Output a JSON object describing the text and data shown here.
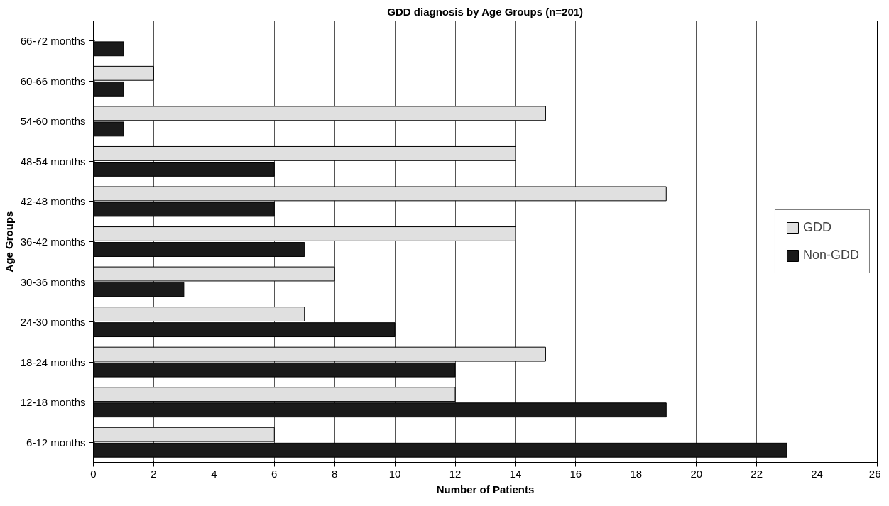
{
  "chart_data": {
    "type": "bar",
    "orientation": "horizontal",
    "title": "GDD diagnosis by Age Groups (n=201)",
    "xlabel": "Number of Patients",
    "ylabel": "Age Groups",
    "categories": [
      "66-72 months",
      "60-66 months",
      "54-60 months",
      "48-54 months",
      "42-48 months",
      "36-42 months",
      "30-36 months",
      "24-30 months",
      "18-24 months",
      "12-18 months",
      "6-12 months"
    ],
    "series": [
      {
        "name": "GDD",
        "color": "#e0e0e0",
        "values": [
          null,
          2,
          15,
          14,
          19,
          14,
          8,
          7,
          15,
          12,
          6
        ]
      },
      {
        "name": "Non-GDD",
        "color": "#1a1a1a",
        "values": [
          1,
          1,
          1,
          6,
          6,
          7,
          3,
          10,
          12,
          19,
          23
        ]
      }
    ],
    "xlim": [
      0,
      26
    ],
    "xticks": [
      0,
      2,
      4,
      6,
      8,
      10,
      12,
      14,
      16,
      18,
      20,
      22,
      24,
      26
    ],
    "grid": "x",
    "legend": "right"
  }
}
